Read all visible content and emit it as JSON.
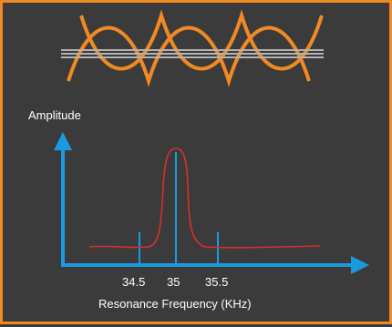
{
  "colors": {
    "background": "#3b3b3b",
    "border": "#f08a24",
    "wave": "#f08a24",
    "string": "#b3b3b3",
    "axis": "#1a9be0",
    "curve": "#d9302a",
    "text": "#ffffff"
  },
  "diagram": {
    "y_axis_label": "Amplitude",
    "x_axis_label": "Resonance Frequency (KHz)",
    "ticks": [
      "34.5",
      "35",
      "35.5"
    ]
  }
}
